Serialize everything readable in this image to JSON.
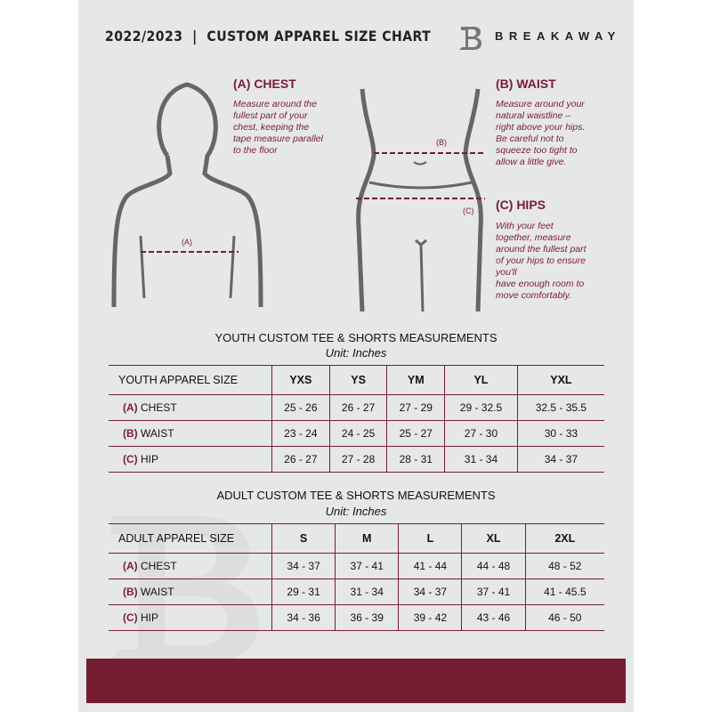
{
  "header": {
    "title": "2022/2023  |  CUSTOM APPAREL SIZE CHART",
    "brand": "BREAKAWAY",
    "logo_letter": "B"
  },
  "guides": {
    "chest": {
      "title": "(A) CHEST",
      "description": [
        "Measure around the",
        "fullest part of your",
        "chest, keeping the",
        "tape measure parallel",
        "to the floor"
      ],
      "marker": "(A)"
    },
    "waist": {
      "title": "(B) WAIST",
      "description": [
        "Measure around your",
        "natural waistline –",
        "right above your hips.",
        "Be careful not to",
        "squeeze too tight to",
        "allow a little give."
      ],
      "marker": "(B)"
    },
    "hips": {
      "title": "(C) HIPS",
      "description": [
        "With your feet",
        "together, measure",
        "around the fullest part",
        "of your hips to ensure",
        "you'll",
        "have enough room to",
        "move comfortably."
      ],
      "marker": "(C)"
    }
  },
  "youth": {
    "title": "YOUTH CUSTOM TEE & SHORTS MEASUREMENTS",
    "unit": "Unit: Inches",
    "size_label": "YOUTH APPAREL SIZE",
    "sizes": [
      "YXS",
      "YS",
      "YM",
      "YL",
      "YXL"
    ],
    "rows": [
      {
        "code": "(A)",
        "label": "CHEST",
        "values": [
          "25 - 26",
          "26 - 27",
          "27 - 29",
          "29 - 32.5",
          "32.5 - 35.5"
        ]
      },
      {
        "code": "(B)",
        "label": "WAIST",
        "values": [
          "23 - 24",
          "24 - 25",
          "25 - 27",
          "27 - 30",
          "30 - 33"
        ]
      },
      {
        "code": "(C)",
        "label": "HIP",
        "values": [
          "26 - 27",
          "27 - 28",
          "28 - 31",
          "31 - 34",
          "34 - 37"
        ]
      }
    ]
  },
  "adult": {
    "title": "ADULT CUSTOM TEE & SHORTS MEASUREMENTS",
    "unit": "Unit: Inches",
    "size_label": "ADULT APPAREL SIZE",
    "sizes": [
      "S",
      "M",
      "L",
      "XL",
      "2XL"
    ],
    "rows": [
      {
        "code": "(A)",
        "label": "CHEST",
        "values": [
          "34 - 37",
          "37 - 41",
          "41 - 44",
          "44 - 48",
          "48 - 52"
        ]
      },
      {
        "code": "(B)",
        "label": "WAIST",
        "values": [
          "29 - 31",
          "31 - 34",
          "34 - 37",
          "37 - 41",
          "41 - 45.5"
        ]
      },
      {
        "code": "(C)",
        "label": "HIP",
        "values": [
          "34 - 36",
          "36 - 39",
          "39 - 42",
          "43 - 46",
          "46 - 50"
        ]
      }
    ]
  },
  "colors": {
    "accent": "#761c32",
    "page": "#e6e7e8"
  }
}
